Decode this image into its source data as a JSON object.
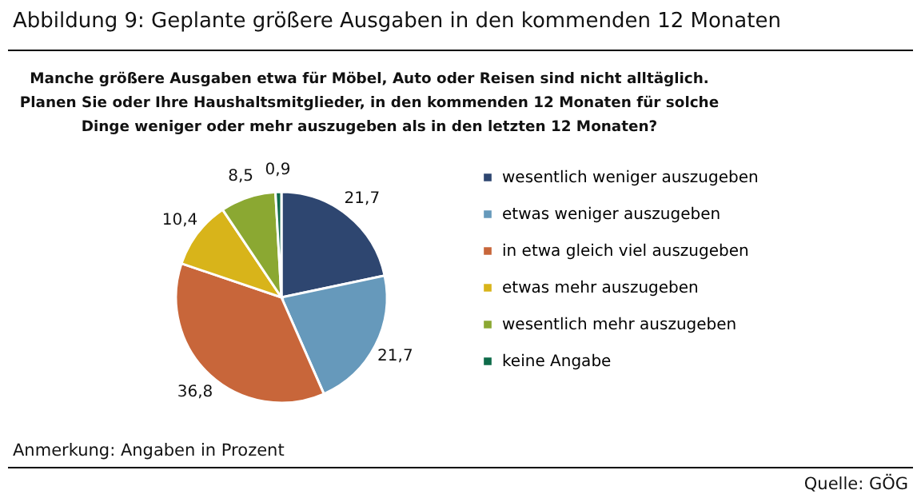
{
  "chart_data": {
    "type": "pie",
    "title": "Abbildung 9: Geplante größere Ausgaben in den kommenden 12 Monaten",
    "subtitle": "Manche größere Ausgaben etwa für Möbel, Auto oder Reisen sind nicht alltäglich. Planen Sie oder Ihre Haushaltsmitglieder, in den kommenden 12 Monaten für solche Dinge weniger oder mehr auszugeben als in den letzten 12 Monaten?",
    "categories": [
      "wesentlich weniger auszugeben",
      "etwas weniger auszugeben",
      "in etwa gleich viel auszugeben",
      "etwas mehr auszugeben",
      "wesentlich mehr auszugeben",
      "keine Angabe"
    ],
    "values": [
      21.7,
      21.7,
      36.8,
      10.4,
      8.5,
      0.9
    ],
    "colors": [
      "#2e4670",
      "#6699bb",
      "#c8663a",
      "#d8b41a",
      "#8ba832",
      "#0e6b4a"
    ],
    "value_labels": [
      "21,7",
      "21,7",
      "36,8",
      "10,4",
      "8,5",
      "0,9"
    ],
    "legend": "right",
    "annotations": [
      "Anmerkung: Angaben in Prozent",
      "Quelle: GÖG"
    ]
  }
}
